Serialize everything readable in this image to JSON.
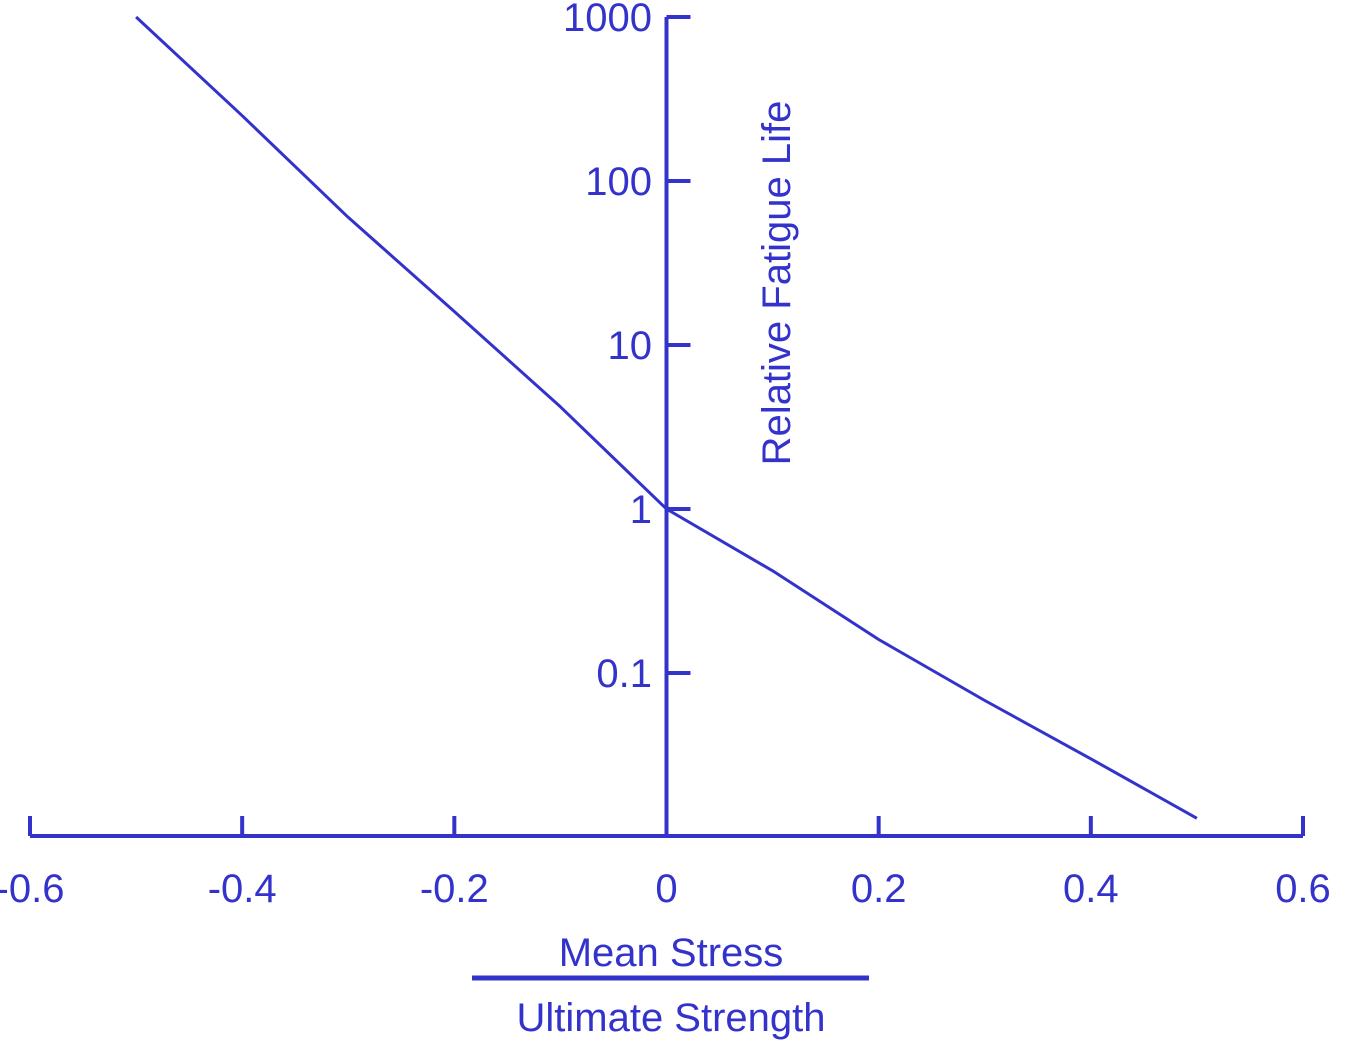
{
  "colors": {
    "ink": "#3333CC",
    "background": "#FFFFFF"
  },
  "chart_data": {
    "type": "line",
    "title": "",
    "xlabel": {
      "numerator": "Mean Stress",
      "denominator": "Ultimate Strength"
    },
    "ylabel": "Relative Fatigue Life",
    "xlim": [
      -0.6,
      0.6
    ],
    "ylim": [
      0.01,
      1000
    ],
    "y_scale": "log",
    "grid": false,
    "legend": "none",
    "x_ticks": [
      -0.6,
      -0.4,
      -0.2,
      0,
      0.2,
      0.4,
      0.6
    ],
    "x_tick_labels": [
      "-0.6",
      "-0.4",
      "-0.2",
      "0",
      "0.2",
      "0.4",
      "0.6"
    ],
    "y_ticks": [
      0.1,
      1,
      10,
      100,
      1000
    ],
    "y_tick_labels": [
      "0.1",
      "1",
      "10",
      "100",
      "1000"
    ],
    "series": [
      {
        "x": [
          -0.5,
          -0.4,
          -0.3,
          -0.2,
          -0.1,
          0,
          0.1,
          0.2,
          0.3,
          0.4,
          0.5
        ],
        "y": [
          1000,
          250,
          60,
          16,
          4.2,
          1,
          0.42,
          0.16,
          0.068,
          0.03,
          0.013
        ]
      }
    ]
  }
}
